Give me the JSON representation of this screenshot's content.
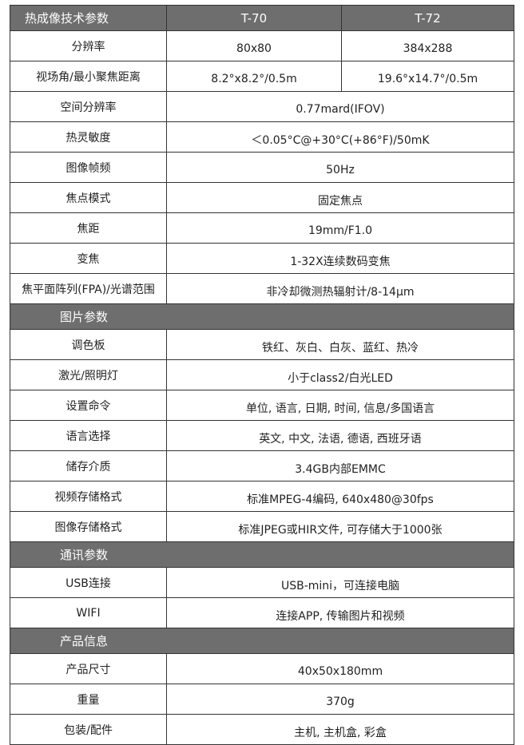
{
  "header": {
    "label": "热成像技术参数",
    "models": [
      "T-70",
      "T-72"
    ]
  },
  "rows": [
    {
      "type": "split",
      "label": "分辨率",
      "values": [
        "80x80",
        "384x288"
      ]
    },
    {
      "type": "split",
      "label": "视场角/最小聚焦距离",
      "values": [
        "8.2°x8.2°/0.5m",
        "19.6°x14.7°/0.5m"
      ]
    },
    {
      "type": "row",
      "label": "空间分辨率",
      "value": "0.77mard(IFOV)"
    },
    {
      "type": "row",
      "label": "热灵敏度",
      "value": "＜0.05°C@+30°C(+86°F)/50mK"
    },
    {
      "type": "row",
      "label": "图像帧频",
      "value": "50Hz"
    },
    {
      "type": "row",
      "label": "焦点模式",
      "value": "固定焦点"
    },
    {
      "type": "row",
      "label": "焦距",
      "value": "19mm/F1.0"
    },
    {
      "type": "row",
      "label": "变焦",
      "value": "1-32X连续数码变焦"
    },
    {
      "type": "row",
      "label": "焦平面阵列(FPA)/光谱范围",
      "value": "非冷却微测热辐射计/8-14μm"
    },
    {
      "type": "section",
      "label": "图片参数"
    },
    {
      "type": "row",
      "label": "调色板",
      "value": "铁红、灰白、白灰、蓝红、热冷"
    },
    {
      "type": "row",
      "label": "激光/照明灯",
      "value": "小于class2/白光LED"
    },
    {
      "type": "row",
      "label": "设置命令",
      "value": "单位, 语言, 日期, 时间, 信息/多国语言"
    },
    {
      "type": "row",
      "label": "语言选择",
      "value": "英文, 中文, 法语, 德语, 西班牙语"
    },
    {
      "type": "row",
      "label": "储存介质",
      "value": "3.4GB内部EMMC"
    },
    {
      "type": "row",
      "label": "视频存储格式",
      "value": "标准MPEG-4编码, 640x480@30fps"
    },
    {
      "type": "row",
      "label": "图像存储格式",
      "value": "标准JPEG或HIR文件, 可存储大于1000张"
    },
    {
      "type": "section",
      "label": "通讯参数"
    },
    {
      "type": "row",
      "label": "USB连接",
      "value": "USB-mini，可连接电脑"
    },
    {
      "type": "row",
      "label": "WIFI",
      "value": "连接APP, 传输图片和视频"
    },
    {
      "type": "section",
      "label": "产品信息"
    },
    {
      "type": "row",
      "label": "产品尺寸",
      "value": "40x50x180mm"
    },
    {
      "type": "row",
      "label": "重量",
      "value": "370g"
    },
    {
      "type": "row",
      "label": "包装/配件",
      "value": "主机, 主机盒, 彩盒"
    }
  ]
}
